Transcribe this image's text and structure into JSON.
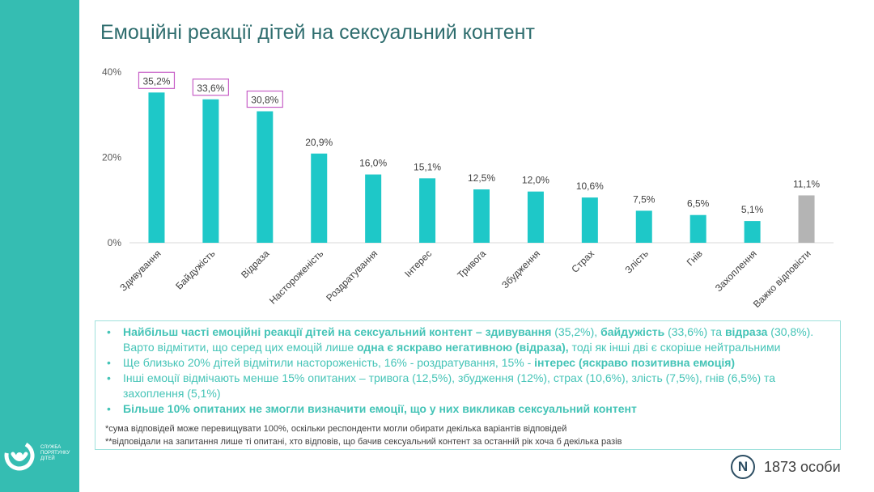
{
  "title": "Емоційні реакції дітей на сексуальний контент",
  "logo": {
    "lines": [
      "СЛУЖБА",
      "ПОРЯТУНКУ",
      "ДІТЕЙ"
    ],
    "icon": "smile-circle-icon"
  },
  "chart_data": {
    "type": "bar",
    "categories": [
      "Здивування",
      "Байдужість",
      "Відраза",
      "Настороженість",
      "Роздратування",
      "Інтерес",
      "Тривога",
      "Збудження",
      "Страх",
      "Злість",
      "Гнів",
      "Захоплення",
      "Важко відповісти"
    ],
    "values": [
      35.2,
      33.6,
      30.8,
      20.9,
      16.0,
      15.1,
      12.5,
      12.0,
      10.6,
      7.5,
      6.5,
      5.1,
      11.1
    ],
    "value_labels": [
      "35,2%",
      "33,6%",
      "30,8%",
      "20,9%",
      "16,0%",
      "15,1%",
      "12,5%",
      "12,0%",
      "10,6%",
      "7,5%",
      "6,5%",
      "5,1%",
      "11,1%"
    ],
    "highlighted": [
      0,
      1,
      2
    ],
    "yticks": [
      {
        "v": 0,
        "label": "0%"
      },
      {
        "v": 20,
        "label": "20%"
      },
      {
        "v": 40,
        "label": "40%"
      }
    ],
    "ylim": [
      0,
      40
    ],
    "colors": {
      "bar": "#1ec8c8",
      "last_bar": "#b4b4b4",
      "highlight_box": "#c75fc7"
    }
  },
  "summary": {
    "b1_bold1": "Найбільш часті емоційні реакції дітей на сексуальний контент – здивування",
    "b1_t1": " (35,2%), ",
    "b1_bold2": "байдужість",
    "b1_t2": " (33,6%) та ",
    "b1_bold3": "відраза",
    "b1_t3": " (30,8%). Варто відмітити, що серед цих емоцій лише ",
    "b1_bold4": "одна є яскраво негативною (відраза),",
    "b1_t4": " тоді як інші дві є скоріше нейтральними",
    "b2_t1": "Ще близько 20% дітей відмітили настороженість, 16% - роздратування, 15% - ",
    "b2_bold1": "інтерес (яскраво позитивна емоція)",
    "b3": "Інші емоції відмічають менше 15% опитаних – тривога (12,5%), збудження (12%), страх (10,6%), злість (7,5%), гнів (6,5%) та захоплення (5,1%)",
    "b4_bold": "Більше 10% опитаних не змогли визначити емоції, що у них викликав сексуальний контент"
  },
  "notes": [
    "*сума відповідей може перевищувати 100%, оскільки респонденти могли обирати декілька варіантів відповідей",
    "**відповідали на запитання лише ті опитані, хто відповів, що бачив сексуальний контент за останній рік хоча б декілька разів"
  ],
  "sample": {
    "badge": "N",
    "text": "1873 особи"
  }
}
